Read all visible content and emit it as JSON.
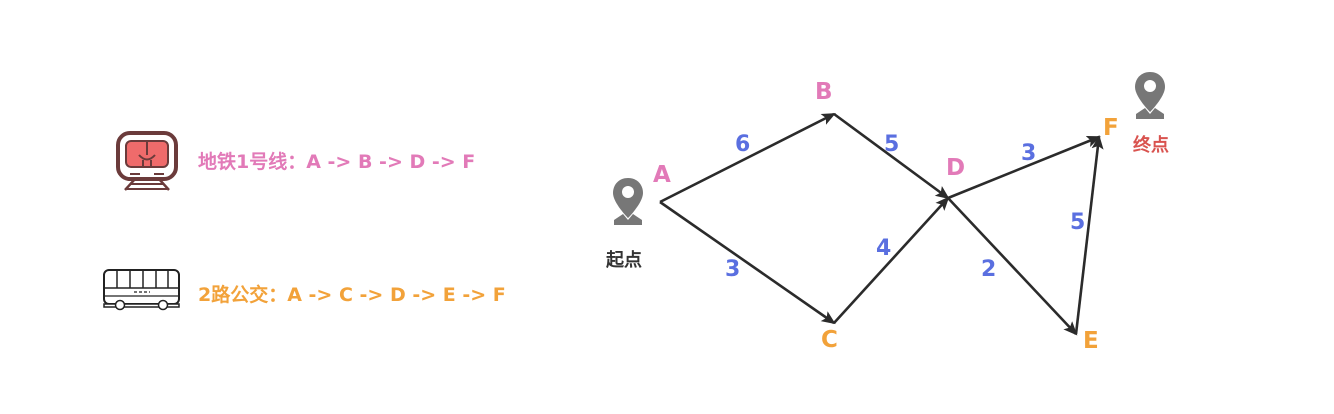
{
  "colors": {
    "subway": "#e27ab8",
    "bus": "#f2a23a",
    "weight": "#5a6fe0",
    "end_label": "#d9534f",
    "start_label": "#333333",
    "edge": "#2b2b2b",
    "pin": "#777777"
  },
  "legend": {
    "subway": {
      "icon": "subway-train-icon",
      "label": "地铁1号线：A -> B -> D -> F"
    },
    "bus": {
      "icon": "bus-icon",
      "label": "2路公交：A -> C -> D -> E -> F"
    }
  },
  "graph": {
    "nodes": [
      {
        "id": "A",
        "label": "A",
        "color": "#e27ab8"
      },
      {
        "id": "B",
        "label": "B",
        "color": "#e27ab8"
      },
      {
        "id": "C",
        "label": "C",
        "color": "#f2a23a"
      },
      {
        "id": "D",
        "label": "D",
        "color": "#e27ab8"
      },
      {
        "id": "E",
        "label": "E",
        "color": "#f2a23a"
      },
      {
        "id": "F",
        "label": "F",
        "color": "#f2a23a"
      }
    ],
    "edges": [
      {
        "from": "A",
        "to": "B",
        "weight": "6"
      },
      {
        "from": "A",
        "to": "C",
        "weight": "3"
      },
      {
        "from": "B",
        "to": "D",
        "weight": "5"
      },
      {
        "from": "C",
        "to": "D",
        "weight": "4"
      },
      {
        "from": "D",
        "to": "F",
        "weight": "3"
      },
      {
        "from": "D",
        "to": "E",
        "weight": "2"
      },
      {
        "from": "E",
        "to": "F",
        "weight": "5"
      }
    ],
    "start": {
      "icon": "map-pin-icon",
      "label": "起点"
    },
    "end": {
      "icon": "map-pin-icon",
      "label": "终点"
    }
  }
}
